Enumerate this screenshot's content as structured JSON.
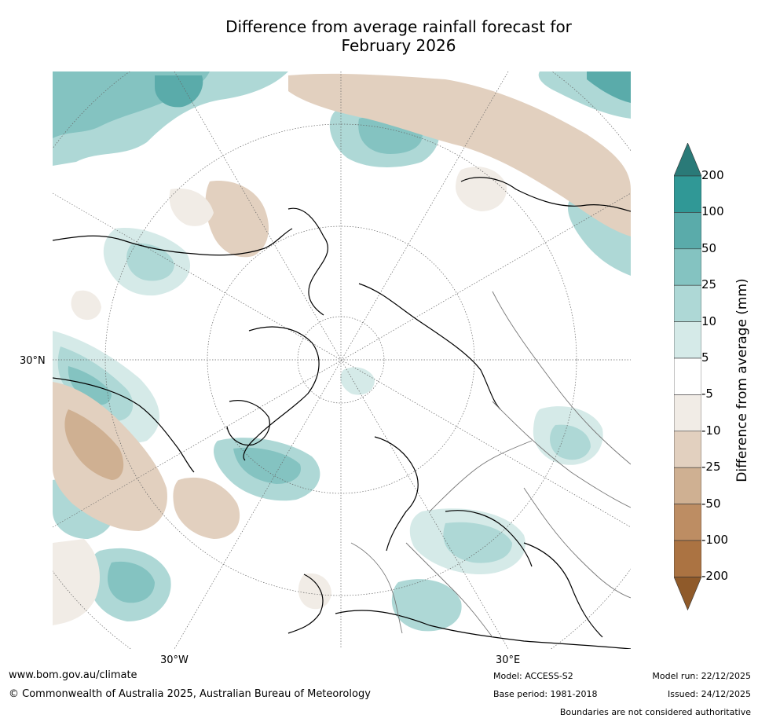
{
  "title_line1": "Difference from average rainfall forecast for",
  "title_line2": "February 2026",
  "map_labels": {
    "lat_30n": "30°N",
    "lon_30w": "30°W",
    "lon_30e": "30°E"
  },
  "colorbar": {
    "title": "Difference from average (mm)",
    "ticks": [
      "200",
      "100",
      "50",
      "25",
      "10",
      "5",
      "-5",
      "-10",
      "-25",
      "-50",
      "-100",
      "-200"
    ],
    "colors_top_to_bottom": [
      "#2a7a78",
      "#309896",
      "#5aabaa",
      "#84c3c1",
      "#aed8d6",
      "#d5eae8",
      "#ffffff",
      "#f1ece6",
      "#e2d0bf",
      "#cfb092",
      "#bd8d63",
      "#ab7342",
      "#8f5a2a"
    ]
  },
  "footer": {
    "website": "www.bom.gov.au/climate",
    "copyright": "© Commonwealth of Australia 2025, Australian Bureau of Meteorology",
    "model": "Model: ACCESS-S2",
    "base_period": "Base period: 1981-2018",
    "model_run": "Model run: 22/12/2025",
    "issued": "Issued: 24/12/2025",
    "disclaimer": "Boundaries are not considered authoritative"
  }
}
